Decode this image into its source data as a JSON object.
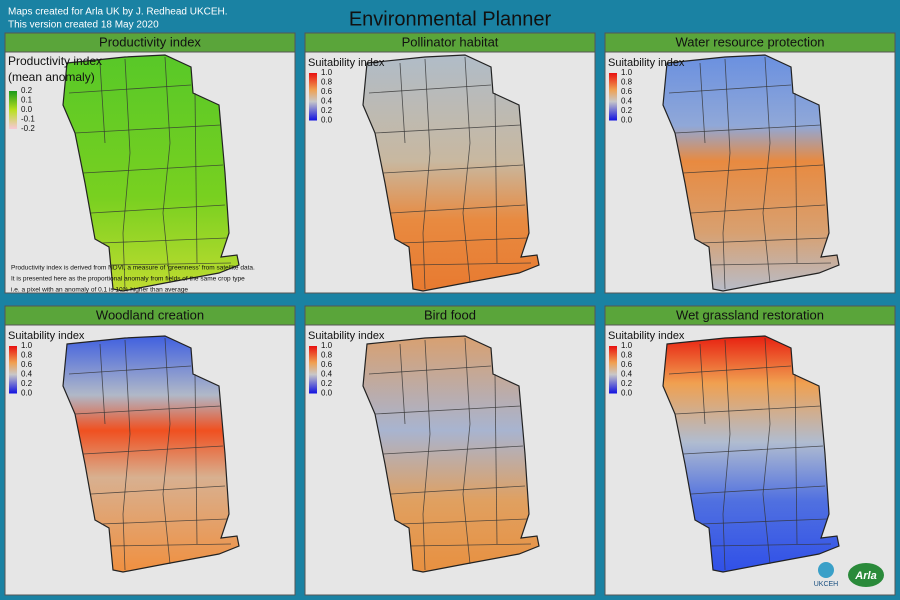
{
  "header": {
    "credit": "Maps created for Arla UK by J. Redhead UKCEH.",
    "version": "This version created 18 May 2020",
    "title": "Environmental Planner"
  },
  "panels": [
    {
      "title": "Productivity index",
      "legend_title": [
        "Productivity index",
        "(mean anomaly)"
      ],
      "legend_labels": [
        "0.2",
        "0.1",
        "0.0",
        "-0.1",
        "-0.2"
      ],
      "note": [
        "Productivity index is derived from NDVI, a measure of 'greenness' from satellite data.",
        "It is presented here as the proportional anomaly from fields of the same crop type",
        "i.e. a pixel with an anomaly of 0.1 is 10% higher than average"
      ]
    },
    {
      "title": "Pollinator habitat",
      "legend_title": [
        "Suitability index"
      ],
      "legend_labels": [
        "1.0",
        "0.8",
        "0.6",
        "0.4",
        "0.2",
        "0.0"
      ]
    },
    {
      "title": "Water resource protection",
      "legend_title": [
        "Suitability index"
      ],
      "legend_labels": [
        "1.0",
        "0.8",
        "0.6",
        "0.4",
        "0.2",
        "0.0"
      ]
    },
    {
      "title": "Woodland creation",
      "legend_title": [
        "Suitability index"
      ],
      "legend_labels": [
        "1.0",
        "0.8",
        "0.6",
        "0.4",
        "0.2",
        "0.0"
      ]
    },
    {
      "title": "Bird food",
      "legend_title": [
        "Suitability index"
      ],
      "legend_labels": [
        "1.0",
        "0.8",
        "0.6",
        "0.4",
        "0.2",
        "0.0"
      ]
    },
    {
      "title": "Wet grassland restoration",
      "legend_title": [
        "Suitability index"
      ],
      "legend_labels": [
        "1.0",
        "0.8",
        "0.6",
        "0.4",
        "0.2",
        "0.0"
      ]
    }
  ],
  "logos": {
    "ukceh": "UKCEH",
    "arla": "Arla"
  }
}
